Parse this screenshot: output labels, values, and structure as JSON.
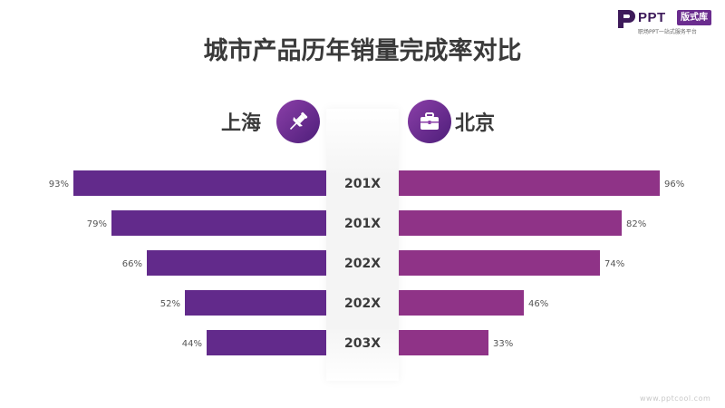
{
  "logo": {
    "brand": "PPT",
    "badge": "版式库",
    "tagline": "职场PPT一站式服务平台"
  },
  "title": "城市产品历年销量完成率对比",
  "watermark": "www.pptcool.com",
  "colors": {
    "left_bar": "#622a8b",
    "right_bar": "#8f3387",
    "accent": "#6a2c8e"
  },
  "icons": {
    "left": "pushpin-icon",
    "right": "briefcase-icon"
  },
  "chart_data": {
    "type": "bar",
    "orientation": "horizontal-diverging",
    "categories": [
      "201X",
      "201X",
      "202X",
      "202X",
      "203X"
    ],
    "series": [
      {
        "name": "上海",
        "values": [
          93,
          79,
          66,
          52,
          44
        ],
        "labels": [
          "93%",
          "79%",
          "66%",
          "52%",
          "44%"
        ]
      },
      {
        "name": "北京",
        "values": [
          96,
          82,
          74,
          46,
          33
        ],
        "labels": [
          "96%",
          "82%",
          "74%",
          "46%",
          "33%"
        ]
      }
    ],
    "xlim": [
      0,
      100
    ]
  }
}
